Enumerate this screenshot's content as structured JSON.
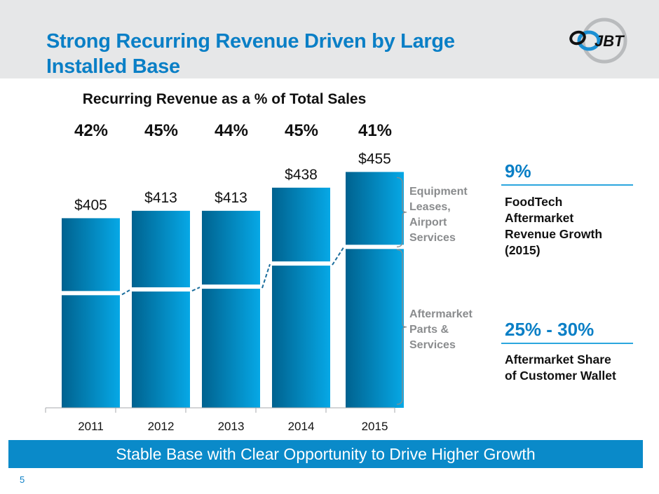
{
  "header": {
    "title": "Strong Recurring Revenue Driven by Large Installed Base",
    "logo_text": "JBT",
    "logo_icon": "jbt-logo-icon"
  },
  "colors": {
    "title_blue": "#0a7fc6",
    "bar_dark": "#00628f",
    "bar_light": "#06a8e6",
    "banner_blue": "#0a8ac9",
    "header_gray": "#e6e7e8",
    "label_gray": "#8a8c8e"
  },
  "chart_data": {
    "type": "bar",
    "title": "Recurring Revenue as a % of Total Sales",
    "categories": [
      "2011",
      "2012",
      "2013",
      "2014",
      "2015"
    ],
    "values": [
      405,
      413,
      413,
      438,
      455
    ],
    "value_labels": [
      "$405",
      "$413",
      "$413",
      "$438",
      "$455"
    ],
    "percent_labels": [
      "42%",
      "45%",
      "44%",
      "45%",
      "41%"
    ],
    "series": [
      {
        "name": "Aftermarket Parts & Services",
        "values_estimated": [
          324,
          328,
          331,
          356,
          374
        ]
      },
      {
        "name": "Equipment Leases, Airport Services",
        "values_estimated": [
          81,
          85,
          82,
          82,
          81
        ]
      }
    ],
    "trend_line": "dashed line connecting the Aftermarket segment tops",
    "xlabel": "",
    "ylabel": "",
    "ylim": [
      200,
      460
    ],
    "grid": false,
    "legend": "right (bracket labels)"
  },
  "side_labels": {
    "upper": "Equipment Leases, Airport Services",
    "lower": "Aftermarket Parts & Services",
    "upper_lines": [
      "Equipment",
      "Leases,",
      "Airport",
      "Services"
    ],
    "lower_lines": [
      "Aftermarket",
      "Parts &",
      "Services"
    ]
  },
  "stats": [
    {
      "value": "9%",
      "desc_lines": [
        "FoodTech",
        "Aftermarket",
        "Revenue Growth",
        "(2015)"
      ]
    },
    {
      "value": "25% - 30%",
      "desc_lines": [
        "Aftermarket Share",
        "of Customer Wallet"
      ]
    }
  ],
  "banner": {
    "text": "Stable Base with Clear Opportunity to Drive Higher Growth"
  },
  "footer": {
    "page_number": "5"
  }
}
